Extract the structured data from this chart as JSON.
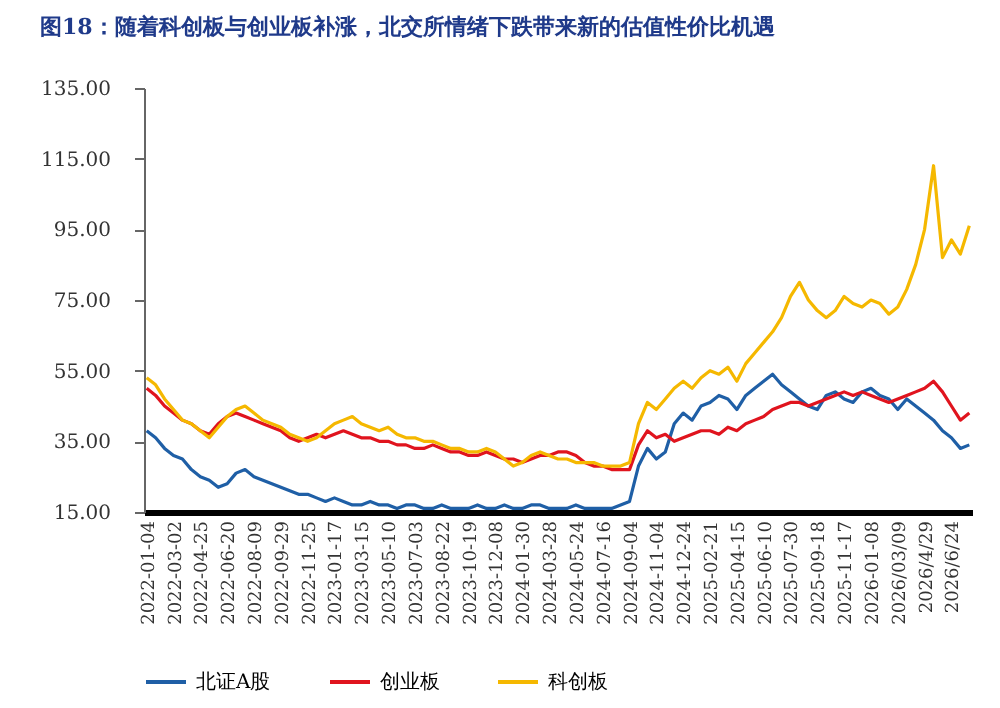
{
  "chart_data": {
    "type": "line",
    "title": "图18：随着科创板与创业板补涨，北交所情绪下跌带来新的估值性价比机遇",
    "categories": [
      "2022-01-04",
      null,
      null,
      "2022-03-02",
      null,
      null,
      "2022-04-25",
      null,
      null,
      "2022-06-20",
      null,
      null,
      "2022-08-09",
      null,
      null,
      "2022-09-29",
      null,
      null,
      "2022-11-25",
      null,
      null,
      "2023-01-17",
      null,
      null,
      "2023-03-15",
      null,
      null,
      "2023-05-10",
      null,
      null,
      "2023-07-03",
      null,
      null,
      "2023-08-22",
      null,
      null,
      "2023-10-19",
      null,
      null,
      "2023-12-08",
      null,
      null,
      "2024-01-30",
      null,
      null,
      "2024-03-28",
      null,
      null,
      "2024-05-24",
      null,
      null,
      "2024-07-16",
      null,
      null,
      "2024-09-04",
      null,
      null,
      "2024-11-04",
      null,
      null,
      "2024-12-24",
      null,
      null,
      "2025-02-21",
      null,
      null,
      "2025-04-15",
      null,
      null,
      "2025-06-10",
      null,
      null,
      "2025-07-30",
      null,
      null,
      "2025-09-18",
      null,
      null,
      "2025-11-17",
      null,
      null,
      "2026-01-08",
      null,
      null,
      "2026/03/09",
      null,
      null,
      "2026/4/29",
      null,
      null,
      "2026/6/24",
      null,
      null
    ],
    "series": [
      {
        "name": "北证A股",
        "color": "#1f5fa6",
        "values": [
          38,
          36,
          33,
          31,
          30,
          27,
          25,
          24,
          22,
          23,
          26,
          27,
          25,
          24,
          23,
          22,
          21,
          20,
          20,
          19,
          18,
          19,
          18,
          17,
          17,
          18,
          17,
          17,
          16,
          17,
          17,
          16,
          16,
          17,
          16,
          16,
          16,
          17,
          16,
          16,
          17,
          16,
          16,
          17,
          17,
          16,
          16,
          16,
          17,
          16,
          16,
          16,
          16,
          17,
          18,
          28,
          33,
          30,
          32,
          40,
          43,
          41,
          45,
          46,
          48,
          47,
          44,
          48,
          50,
          52,
          54,
          51,
          49,
          47,
          45,
          44,
          48,
          49,
          47,
          46,
          49,
          50,
          48,
          47,
          44,
          47,
          45,
          43,
          41,
          38,
          36,
          33,
          34
        ]
      },
      {
        "name": "创业板",
        "color": "#e0141e",
        "values": [
          50,
          48,
          45,
          43,
          41,
          40,
          38,
          37,
          40,
          42,
          43,
          42,
          41,
          40,
          39,
          38,
          36,
          35,
          36,
          37,
          36,
          37,
          38,
          37,
          36,
          36,
          35,
          35,
          34,
          34,
          33,
          33,
          34,
          33,
          32,
          32,
          31,
          31,
          32,
          31,
          30,
          30,
          29,
          30,
          31,
          31,
          32,
          32,
          31,
          29,
          28,
          28,
          27,
          27,
          27,
          34,
          38,
          36,
          37,
          35,
          36,
          37,
          38,
          38,
          37,
          39,
          38,
          40,
          41,
          42,
          44,
          45,
          46,
          46,
          45,
          46,
          47,
          48,
          49,
          48,
          49,
          48,
          47,
          46,
          47,
          48,
          49,
          50,
          52,
          49,
          45,
          41,
          43
        ]
      },
      {
        "name": "科创板",
        "color": "#f5b800",
        "values": [
          53,
          51,
          47,
          44,
          41,
          40,
          38,
          36,
          39,
          42,
          44,
          45,
          43,
          41,
          40,
          39,
          37,
          36,
          35,
          36,
          38,
          40,
          41,
          42,
          40,
          39,
          38,
          39,
          37,
          36,
          36,
          35,
          35,
          34,
          33,
          33,
          32,
          32,
          33,
          32,
          30,
          28,
          29,
          31,
          32,
          31,
          30,
          30,
          29,
          29,
          29,
          28,
          28,
          28,
          29,
          40,
          46,
          44,
          47,
          50,
          52,
          50,
          53,
          55,
          54,
          56,
          52,
          57,
          60,
          63,
          66,
          70,
          76,
          80,
          75,
          72,
          70,
          72,
          76,
          74,
          73,
          75,
          74,
          71,
          73,
          78,
          85,
          95,
          113,
          87,
          92,
          88,
          96
        ]
      }
    ],
    "ylim": [
      15,
      135
    ],
    "yticks": [
      {
        "value": 15,
        "label": "15.00"
      },
      {
        "value": 35,
        "label": "35.00"
      },
      {
        "value": 55,
        "label": "55.00"
      },
      {
        "value": 75,
        "label": "75.00"
      },
      {
        "value": 95,
        "label": "95.00"
      },
      {
        "value": 115,
        "label": "115.00"
      },
      {
        "value": 135,
        "label": "135.00"
      }
    ],
    "grid": false,
    "legend": "bottom",
    "marker": "none",
    "line_style": "solid"
  }
}
